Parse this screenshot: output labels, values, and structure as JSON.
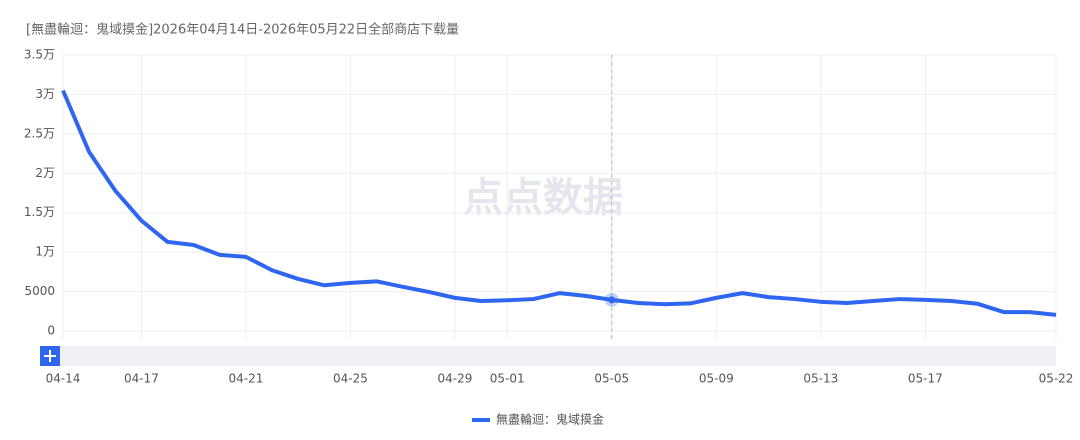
{
  "chart_data": {
    "type": "line",
    "title": "[無盡輪迴：鬼域摸金]2026年04月14日-2026年05月22日全部商店下载量",
    "watermark": "点点数据",
    "categories": [
      "04-14",
      null,
      null,
      "04-17",
      null,
      null,
      null,
      "04-21",
      null,
      null,
      null,
      "04-25",
      null,
      null,
      null,
      "04-29",
      null,
      "05-01",
      null,
      null,
      null,
      "05-05",
      null,
      null,
      null,
      "05-09",
      null,
      null,
      null,
      "05-13",
      null,
      null,
      null,
      "05-17",
      null,
      null,
      null,
      null,
      "05-22"
    ],
    "series": [
      {
        "name": "無盡輪迴：鬼域摸金",
        "color": "#2f66f0",
        "values": [
          30500,
          22700,
          17800,
          14000,
          11300,
          10900,
          9650,
          9400,
          7700,
          6600,
          5800,
          6100,
          6300,
          5600,
          4950,
          4200,
          3800,
          3900,
          4050,
          4800,
          4450,
          3950,
          3550,
          3400,
          3500,
          4200,
          4800,
          4300,
          4050,
          3700,
          3550,
          3800,
          4050,
          3950,
          3800,
          3450,
          2400,
          2400,
          2050
        ]
      }
    ],
    "ylim": [
      0,
      35000
    ],
    "yticks": [
      0,
      5000,
      {
        "value": 10000,
        "label": "1万"
      },
      {
        "value": 15000,
        "label": "1.5万"
      },
      {
        "value": 20000,
        "label": "2万"
      },
      {
        "value": 25000,
        "label": "2.5万"
      },
      {
        "value": 30000,
        "label": "3万"
      },
      {
        "value": 35000,
        "label": "3.5万"
      }
    ],
    "grid": true,
    "legend": "bottom"
  }
}
